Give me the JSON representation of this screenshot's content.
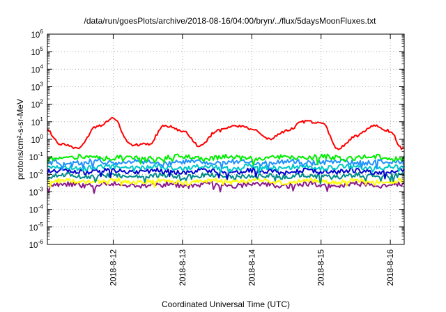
{
  "chart_data": {
    "type": "line",
    "title": "/data/run/goesPlots/archive/2018-08-16/04:00/bryn/../flux/5daysMoonFluxes.txt",
    "xlabel": "Coordinated Universal Time (UTC)",
    "ylabel": "protons/cm²-s-sr-MeV",
    "yscale": "log",
    "ylim": [
      1e-06,
      1000000.0
    ],
    "xlim_days_aug": [
      11.05,
      16.2
    ],
    "xticks": [
      "2018-8-12",
      "2018-8-13",
      "2018-8-14",
      "2018-8-15",
      "2018-8-16"
    ],
    "yticks": [
      {
        "base": "10",
        "exp": "-6"
      },
      {
        "base": "10",
        "exp": "-5"
      },
      {
        "base": "10",
        "exp": "-4"
      },
      {
        "base": "10",
        "exp": "-3"
      },
      {
        "base": "10",
        "exp": "-2"
      },
      {
        "base": "10",
        "exp": "-1"
      },
      {
        "base": "10",
        "exp": "0"
      },
      {
        "base": "10",
        "exp": "1"
      },
      {
        "base": "10",
        "exp": "2"
      },
      {
        "base": "10",
        "exp": "3"
      },
      {
        "base": "10",
        "exp": "4"
      },
      {
        "base": "10",
        "exp": "5"
      },
      {
        "base": "10",
        "exp": "6"
      }
    ],
    "grid": true,
    "series": [
      {
        "color": "#ff0000",
        "x": [
          "2018-08-11 00:00",
          "2018-08-11 06:00",
          "2018-08-11 12:00",
          "2018-08-11 18:00",
          "2018-08-12 00:00",
          "2018-08-12 06:00",
          "2018-08-12 12:00",
          "2018-08-12 18:00",
          "2018-08-13 00:00",
          "2018-08-13 06:00",
          "2018-08-13 12:00",
          "2018-08-13 18:00",
          "2018-08-14 00:00",
          "2018-08-14 06:00",
          "2018-08-14 12:00",
          "2018-08-14 18:00",
          "2018-08-15 00:00",
          "2018-08-15 06:00",
          "2018-08-15 12:00",
          "2018-08-15 18:00",
          "2018-08-16 00:00",
          "2018-08-16 04:00"
        ],
        "values": [
          5,
          0.5,
          0.3,
          5,
          15,
          0.5,
          0.5,
          6,
          3,
          0.4,
          3,
          6,
          4,
          1,
          3,
          10,
          10,
          0.3,
          1.5,
          6,
          3,
          0.3
        ]
      },
      {
        "color": "#00ee00",
        "level": 0.09
      },
      {
        "color": "#1e90ff",
        "level": 0.05
      },
      {
        "color": "#00c8c8",
        "level": 0.025
      },
      {
        "color": "#0000cd",
        "level": 0.015
      },
      {
        "color": "#008b8b",
        "level": 0.008
      },
      {
        "color": "#ffff00",
        "level": 0.004
      },
      {
        "color": "#8b1a8b",
        "level": 0.0025
      }
    ]
  }
}
